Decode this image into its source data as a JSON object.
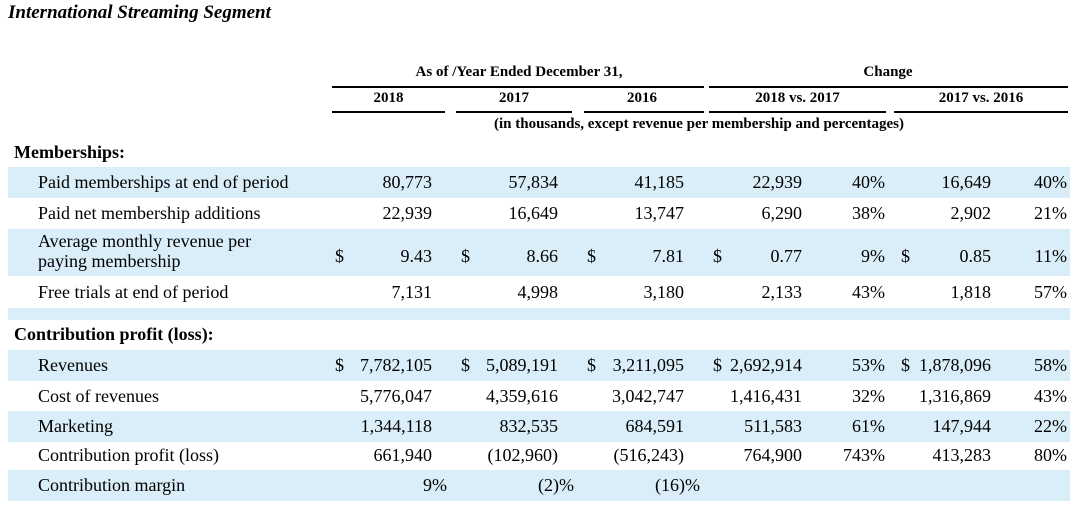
{
  "title": "International Streaming Segment",
  "header": {
    "group_label": "As of /Year Ended December 31,",
    "change_label": "Change",
    "years": [
      "2018",
      "2017",
      "2016"
    ],
    "changes": [
      "2018 vs. 2017",
      "2017 vs. 2016"
    ],
    "units_note": "(in thousands, except revenue per membership and percentages)"
  },
  "sections": {
    "memberships": "Memberships:",
    "contribution": "Contribution profit (loss):"
  },
  "rows": {
    "paid_memberships": {
      "label": "Paid memberships at end of period",
      "v2018": "80,773",
      "v2017": "57,834",
      "v2016": "41,185",
      "chg1": "22,939",
      "pct1": "40%",
      "chg2": "16,649",
      "pct2": "40%"
    },
    "net_additions": {
      "label": "Paid net membership additions",
      "v2018": "22,939",
      "v2017": "16,649",
      "v2016": "13,747",
      "chg1": "6,290",
      "pct1": "38%",
      "chg2": "2,902",
      "pct2": "21%"
    },
    "avg_revenue": {
      "label": "Average monthly revenue per paying membership",
      "dollar": "$",
      "v2018": "9.43",
      "v2017": "8.66",
      "v2016": "7.81",
      "chg1": "0.77",
      "pct1": "9%",
      "chg2": "0.85",
      "pct2": "11%"
    },
    "free_trials": {
      "label": "Free trials at end of period",
      "v2018": "7,131",
      "v2017": "4,998",
      "v2016": "3,180",
      "chg1": "2,133",
      "pct1": "43%",
      "chg2": "1,818",
      "pct2": "57%"
    },
    "revenues": {
      "label": "Revenues",
      "dollar": "$",
      "v2018": "7,782,105",
      "v2017": "5,089,191",
      "v2016": "3,211,095",
      "chg1": "2,692,914",
      "pct1": "53%",
      "chg2": "1,878,096",
      "pct2": "58%"
    },
    "cost_of_revenues": {
      "label": "Cost of revenues",
      "v2018": "5,776,047",
      "v2017": "4,359,616",
      "v2016": "3,042,747",
      "chg1": "1,416,431",
      "pct1": "32%",
      "chg2": "1,316,869",
      "pct2": "43%"
    },
    "marketing": {
      "label": "Marketing",
      "v2018": "1,344,118",
      "v2017": "832,535",
      "v2016": "684,591",
      "chg1": "511,583",
      "pct1": "61%",
      "chg2": "147,944",
      "pct2": "22%"
    },
    "contribution_profit": {
      "label": "Contribution profit (loss)",
      "v2018": "661,940",
      "v2017": "(102,960)",
      "v2016": "(516,243)",
      "chg1": "764,900",
      "pct1": "743%",
      "chg2": "413,283",
      "pct2": "80%"
    },
    "contribution_margin": {
      "label": "Contribution margin",
      "v2018": "9%",
      "v2017": "(2)%",
      "v2016": "(16)%"
    }
  }
}
